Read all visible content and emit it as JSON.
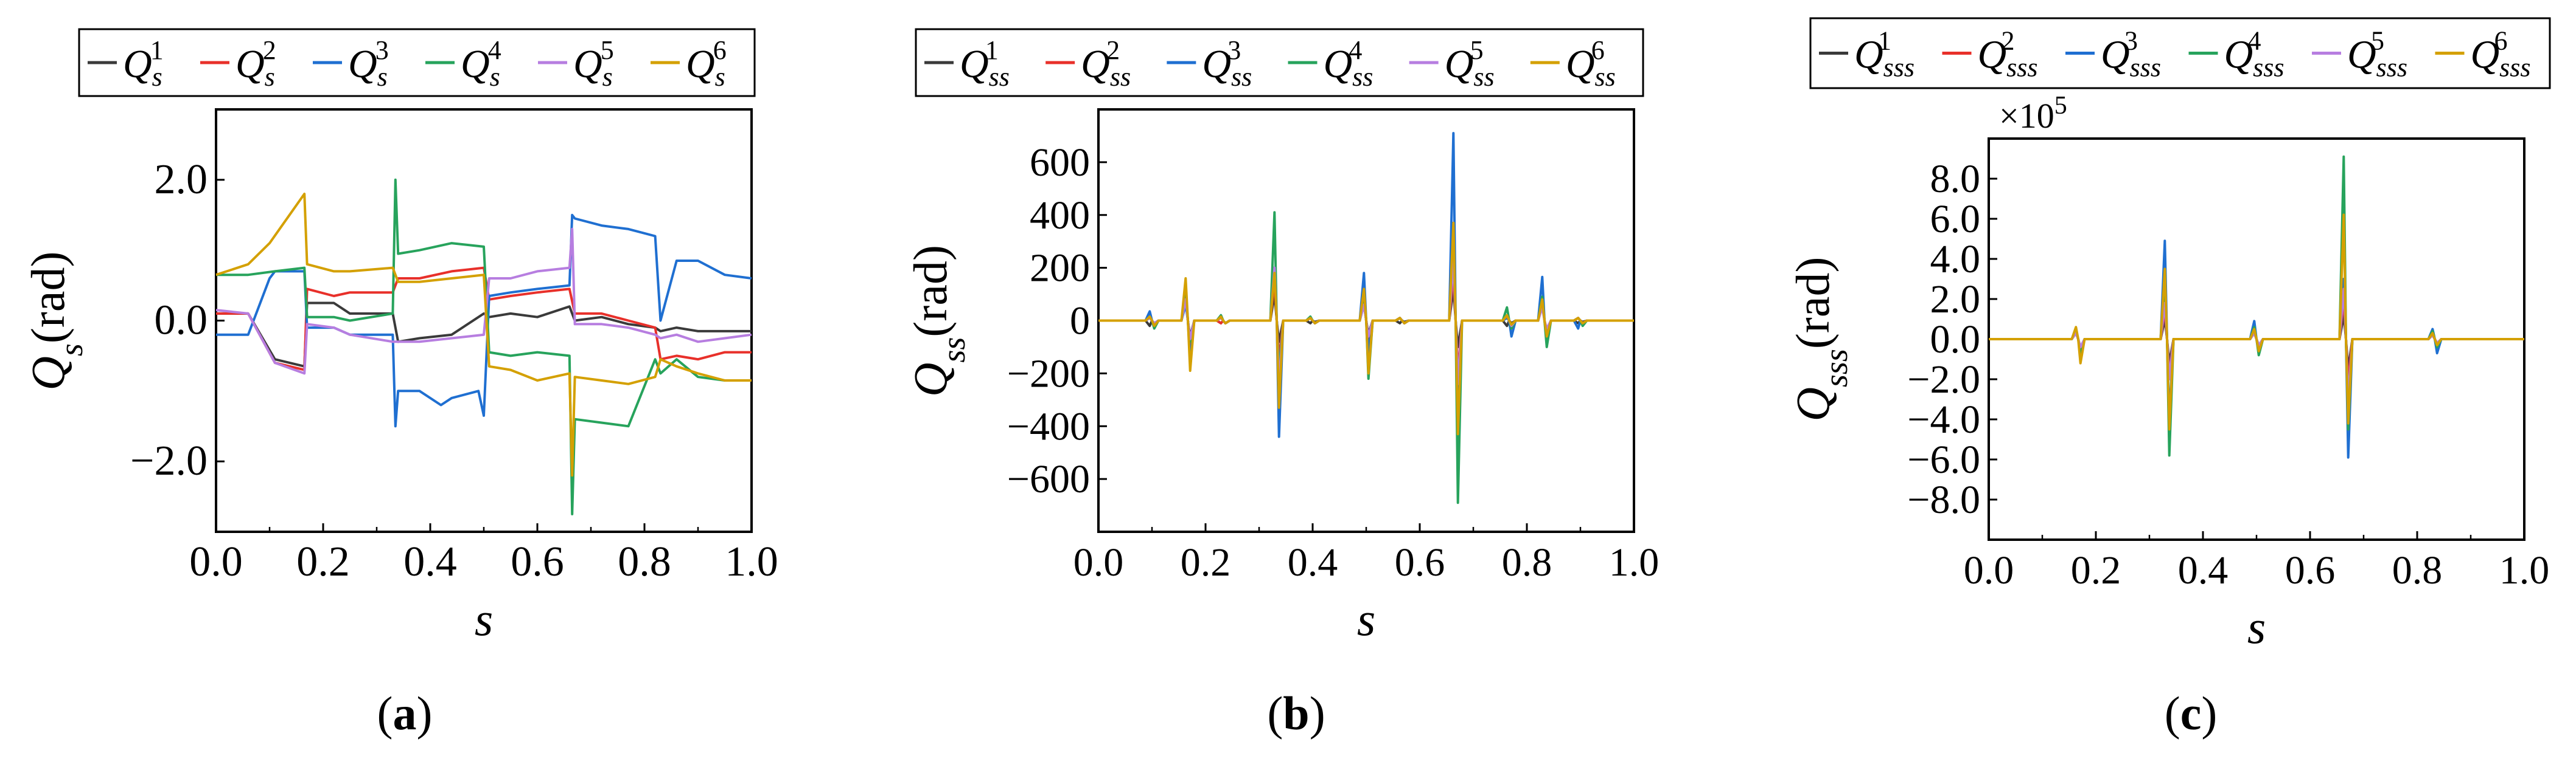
{
  "colors": {
    "Q1": "#3a3a3a",
    "Q2": "#e8302a",
    "Q3": "#1f6fd1",
    "Q4": "#27a35c",
    "Q5": "#b77ee0",
    "Q6": "#d4a000"
  },
  "chart_data": [
    {
      "type": "line",
      "panel_label": "(a)",
      "panel_letter": "a",
      "xlabel": "s",
      "ylabel_base": "Q",
      "ylabel_sub": "s",
      "ylabel_unit": "(rad)",
      "legend_entries": [
        "Q_s^1",
        "Q_s^2",
        "Q_s^3",
        "Q_s^4",
        "Q_s^5",
        "Q_s^6"
      ],
      "legend_sub": "s",
      "legend_sups": [
        "1",
        "2",
        "3",
        "4",
        "5",
        "6"
      ],
      "xlim": [
        0,
        1
      ],
      "ylim": [
        -3,
        3
      ],
      "xticks": [
        0.0,
        0.2,
        0.4,
        0.6,
        0.8,
        1.0
      ],
      "xtick_labels": [
        "0.0",
        "0.2",
        "0.4",
        "0.6",
        "0.8",
        "1.0"
      ],
      "yticks": [
        -2,
        0,
        2
      ],
      "ytick_labels": [
        "−2.0",
        "0.0",
        "2.0"
      ],
      "series": [
        {
          "name": "Q_s^1",
          "key": "Q1",
          "x": [
            0,
            0.06,
            0.11,
            0.165,
            0.17,
            0.22,
            0.25,
            0.33,
            0.34,
            0.38,
            0.44,
            0.5,
            0.51,
            0.55,
            0.6,
            0.66,
            0.67,
            0.72,
            0.77,
            0.82,
            0.83,
            0.86,
            0.9,
            0.95,
            1.0
          ],
          "values": [
            0.1,
            0.1,
            -0.55,
            -0.65,
            0.25,
            0.25,
            0.1,
            0.1,
            -0.3,
            -0.25,
            -0.2,
            0.1,
            0.05,
            0.1,
            0.05,
            0.2,
            0.0,
            0.05,
            -0.05,
            -0.1,
            -0.15,
            -0.1,
            -0.15,
            -0.15,
            -0.15
          ]
        },
        {
          "name": "Q_s^2",
          "key": "Q2",
          "x": [
            0,
            0.06,
            0.11,
            0.165,
            0.17,
            0.22,
            0.25,
            0.33,
            0.34,
            0.38,
            0.44,
            0.5,
            0.51,
            0.55,
            0.6,
            0.66,
            0.67,
            0.72,
            0.77,
            0.82,
            0.83,
            0.86,
            0.9,
            0.95,
            1.0
          ],
          "values": [
            0.1,
            0.1,
            -0.6,
            -0.7,
            0.45,
            0.35,
            0.4,
            0.4,
            0.6,
            0.6,
            0.7,
            0.75,
            0.3,
            0.35,
            0.4,
            0.45,
            0.1,
            0.1,
            0.0,
            -0.1,
            -0.55,
            -0.5,
            -0.55,
            -0.45,
            -0.45
          ]
        },
        {
          "name": "Q_s^3",
          "key": "Q3",
          "x": [
            0,
            0.06,
            0.1,
            0.11,
            0.165,
            0.17,
            0.22,
            0.25,
            0.33,
            0.335,
            0.34,
            0.38,
            0.42,
            0.44,
            0.49,
            0.5,
            0.51,
            0.55,
            0.6,
            0.66,
            0.665,
            0.67,
            0.72,
            0.77,
            0.82,
            0.83,
            0.86,
            0.9,
            0.95,
            1.0
          ],
          "values": [
            -0.2,
            -0.2,
            0.6,
            0.7,
            0.7,
            -0.1,
            -0.1,
            -0.2,
            -0.2,
            -1.5,
            -1.0,
            -1.0,
            -1.2,
            -1.1,
            -1.0,
            -1.35,
            0.35,
            0.4,
            0.45,
            0.5,
            1.5,
            1.45,
            1.35,
            1.3,
            1.2,
            0.0,
            0.85,
            0.85,
            0.65,
            0.6
          ]
        },
        {
          "name": "Q_s^4",
          "key": "Q4",
          "x": [
            0,
            0.06,
            0.11,
            0.165,
            0.17,
            0.22,
            0.25,
            0.33,
            0.335,
            0.34,
            0.38,
            0.44,
            0.5,
            0.51,
            0.55,
            0.6,
            0.66,
            0.665,
            0.67,
            0.72,
            0.77,
            0.82,
            0.83,
            0.86,
            0.9,
            0.95,
            1.0
          ],
          "values": [
            0.65,
            0.65,
            0.7,
            0.75,
            0.05,
            0.05,
            0.0,
            0.1,
            2.0,
            0.95,
            1.0,
            1.1,
            1.05,
            -0.45,
            -0.5,
            -0.45,
            -0.5,
            -2.75,
            -1.4,
            -1.45,
            -1.5,
            -0.55,
            -0.75,
            -0.55,
            -0.8,
            -0.85,
            -0.85
          ]
        },
        {
          "name": "Q_s^5",
          "key": "Q5",
          "x": [
            0,
            0.06,
            0.11,
            0.165,
            0.17,
            0.22,
            0.25,
            0.33,
            0.34,
            0.38,
            0.44,
            0.5,
            0.51,
            0.55,
            0.6,
            0.66,
            0.665,
            0.67,
            0.72,
            0.77,
            0.82,
            0.83,
            0.86,
            0.9,
            0.95,
            1.0
          ],
          "values": [
            0.15,
            0.1,
            -0.6,
            -0.75,
            -0.05,
            -0.1,
            -0.2,
            -0.3,
            -0.3,
            -0.3,
            -0.25,
            -0.2,
            0.6,
            0.6,
            0.7,
            0.75,
            1.3,
            -0.05,
            -0.05,
            -0.1,
            -0.2,
            -0.25,
            -0.2,
            -0.3,
            -0.25,
            -0.2
          ]
        },
        {
          "name": "Q_s^6",
          "key": "Q6",
          "x": [
            0,
            0.06,
            0.1,
            0.165,
            0.17,
            0.22,
            0.25,
            0.33,
            0.34,
            0.38,
            0.44,
            0.5,
            0.51,
            0.55,
            0.6,
            0.66,
            0.665,
            0.67,
            0.72,
            0.77,
            0.82,
            0.83,
            0.86,
            0.9,
            0.95,
            1.0
          ],
          "values": [
            0.65,
            0.8,
            1.1,
            1.8,
            0.8,
            0.7,
            0.7,
            0.75,
            0.55,
            0.55,
            0.6,
            0.65,
            -0.65,
            -0.7,
            -0.85,
            -0.75,
            -2.2,
            -0.8,
            -0.85,
            -0.9,
            -0.8,
            -0.55,
            -0.65,
            -0.75,
            -0.85,
            -0.85
          ]
        }
      ]
    },
    {
      "type": "line",
      "panel_label": "(b)",
      "panel_letter": "b",
      "xlabel": "s",
      "ylabel_base": "Q",
      "ylabel_sub": "ss",
      "ylabel_unit": "(rad)",
      "legend_entries": [
        "Q_ss^1",
        "Q_ss^2",
        "Q_ss^3",
        "Q_ss^4",
        "Q_ss^5",
        "Q_ss^6"
      ],
      "legend_sub": "ss",
      "legend_sups": [
        "1",
        "2",
        "3",
        "4",
        "5",
        "6"
      ],
      "xlim": [
        0,
        1
      ],
      "ylim": [
        -800,
        800
      ],
      "xticks": [
        0.0,
        0.2,
        0.4,
        0.6,
        0.8,
        1.0
      ],
      "xtick_labels": [
        "0.0",
        "0.2",
        "0.4",
        "0.6",
        "0.8",
        "1.0"
      ],
      "yticks": [
        -600,
        -400,
        -200,
        0,
        200,
        400,
        600
      ],
      "ytick_labels": [
        "−600",
        "−400",
        "−200",
        "0",
        "200",
        "400",
        "600"
      ],
      "spike_positions": [
        0.1,
        0.167,
        0.233,
        0.333,
        0.4,
        0.5,
        0.567,
        0.667,
        0.767,
        0.833,
        0.9
      ],
      "series": [
        {
          "name": "Q_ss^1",
          "key": "Q1",
          "pos": [
            -20,
            80,
            -10,
            100,
            -10,
            60,
            -10,
            120,
            -20,
            60,
            -10
          ],
          "neg": [
            -10,
            -60,
            -10,
            -80,
            -5,
            -50,
            -5,
            -100,
            -10,
            -40,
            -5
          ]
        },
        {
          "name": "Q_ss^2",
          "key": "Q2",
          "pos": [
            20,
            100,
            -10,
            150,
            10,
            80,
            10,
            180,
            20,
            70,
            10
          ],
          "neg": [
            -20,
            -120,
            -10,
            -150,
            -10,
            -90,
            -10,
            -200,
            -20,
            -60,
            -10
          ]
        },
        {
          "name": "Q_ss^3",
          "key": "Q3",
          "pos": [
            35,
            60,
            20,
            200,
            10,
            180,
            10,
            710,
            10,
            165,
            -30
          ],
          "neg": [
            -20,
            -150,
            -10,
            -440,
            -10,
            -120,
            -10,
            -300,
            -60,
            -40,
            -10
          ]
        },
        {
          "name": "Q_ss^4",
          "key": "Q4",
          "pos": [
            10,
            120,
            20,
            410,
            15,
            100,
            10,
            300,
            50,
            90,
            10
          ],
          "neg": [
            -30,
            -80,
            -10,
            -200,
            -10,
            -220,
            -10,
            -690,
            -30,
            -100,
            -20
          ]
        },
        {
          "name": "Q_ss^5",
          "key": "Q5",
          "pos": [
            10,
            80,
            10,
            200,
            10,
            60,
            10,
            230,
            20,
            50,
            10
          ],
          "neg": [
            -10,
            -70,
            -10,
            -250,
            -10,
            -60,
            -10,
            -240,
            -20,
            -30,
            -10
          ]
        },
        {
          "name": "Q_ss^6",
          "key": "Q6",
          "pos": [
            15,
            160,
            15,
            180,
            10,
            120,
            10,
            370,
            20,
            80,
            10
          ],
          "neg": [
            -20,
            -190,
            -10,
            -330,
            -10,
            -200,
            -10,
            -430,
            -15,
            -60,
            -10
          ]
        }
      ]
    },
    {
      "type": "line",
      "panel_label": "(c)",
      "panel_letter": "c",
      "xlabel": "s",
      "ylabel_base": "Q",
      "ylabel_sub": "sss",
      "ylabel_unit": "(rad)",
      "legend_entries": [
        "Q_sss^1",
        "Q_sss^2",
        "Q_sss^3",
        "Q_sss^4",
        "Q_sss^5",
        "Q_sss^6"
      ],
      "legend_sub": "sss",
      "legend_sups": [
        "1",
        "2",
        "3",
        "4",
        "5",
        "6"
      ],
      "y_multiplier_base": "×10",
      "y_multiplier_exp": "5",
      "xlim": [
        0,
        1
      ],
      "ylim": [
        -10,
        10
      ],
      "xticks": [
        0.0,
        0.2,
        0.4,
        0.6,
        0.8,
        1.0
      ],
      "xtick_labels": [
        "0.0",
        "0.2",
        "0.4",
        "0.6",
        "0.8",
        "1.0"
      ],
      "yticks": [
        -8,
        -6,
        -4,
        -2,
        0,
        2,
        4,
        6,
        8
      ],
      "ytick_labels": [
        "−8.0",
        "−6.0",
        "−4.0",
        "−2.0",
        "0.0",
        "2.0",
        "4.0",
        "6.0",
        "8.0"
      ],
      "spike_positions": [
        0.167,
        0.333,
        0.5,
        0.667,
        0.833
      ],
      "series": [
        {
          "name": "Q_sss^1",
          "key": "Q1",
          "pos": [
            0.3,
            1.0,
            0.3,
            1.2,
            0.2
          ],
          "neg": [
            -0.4,
            -1.2,
            -0.3,
            -1.5,
            -0.2
          ]
        },
        {
          "name": "Q_sss^2",
          "key": "Q2",
          "pos": [
            0.4,
            1.5,
            0.4,
            2.0,
            0.3
          ],
          "neg": [
            -0.5,
            -1.8,
            -0.4,
            -2.2,
            -0.3
          ]
        },
        {
          "name": "Q_sss^3",
          "key": "Q3",
          "pos": [
            0.4,
            4.9,
            0.9,
            3.0,
            0.5
          ],
          "neg": [
            -0.6,
            -4.0,
            -0.5,
            -5.9,
            -0.7
          ]
        },
        {
          "name": "Q_sss^4",
          "key": "Q4",
          "pos": [
            0.5,
            3.0,
            0.6,
            9.1,
            0.4
          ],
          "neg": [
            -0.7,
            -5.8,
            -0.8,
            -4.5,
            -0.4
          ]
        },
        {
          "name": "Q_sss^5",
          "key": "Q5",
          "pos": [
            0.3,
            1.8,
            0.3,
            2.5,
            0.2
          ],
          "neg": [
            -0.4,
            -2.0,
            -0.3,
            -3.0,
            -0.2
          ]
        },
        {
          "name": "Q_sss^6",
          "key": "Q6",
          "pos": [
            0.6,
            3.5,
            0.5,
            6.2,
            0.3
          ],
          "neg": [
            -1.2,
            -4.5,
            -0.6,
            -4.2,
            -0.3
          ]
        }
      ]
    }
  ]
}
